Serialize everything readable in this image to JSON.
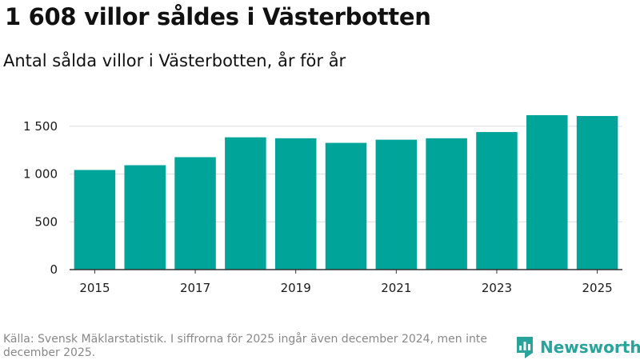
{
  "header": {
    "title": "1 608 villor såldes i Västerbotten",
    "subtitle": "Antal sålda villor i Västerbotten, år för år"
  },
  "chart_data": {
    "type": "bar",
    "title": "1 608 villor såldes i Västerbotten",
    "subtitle": "Antal sålda villor i Västerbotten, år för år",
    "categories": [
      "2015",
      "2016",
      "2017",
      "2018",
      "2019",
      "2020",
      "2021",
      "2022",
      "2023",
      "2024",
      "2025"
    ],
    "values": [
      1043,
      1093,
      1177,
      1385,
      1375,
      1327,
      1360,
      1375,
      1440,
      1617,
      1608
    ],
    "x_tick_labels": [
      "2015",
      "2017",
      "2019",
      "2021",
      "2023",
      "2025"
    ],
    "y_ticks": [
      0,
      500,
      1000,
      1500
    ],
    "y_tick_labels": [
      "0",
      "500",
      "1 000",
      "1 500"
    ],
    "ylim": [
      0,
      1650
    ],
    "xlabel": "",
    "ylabel": "",
    "grid": true,
    "bar_color": "#00a499"
  },
  "footer": {
    "source": "Källa: Svensk Mäklarstatistik. I siffrorna för 2025 ingår även december 2024, men inte december 2025.",
    "brand": "Newsworthy"
  },
  "colors": {
    "bar": "#00a499",
    "brand": "#2aa39a",
    "grid": "#dddddd",
    "axis": "#333333",
    "source_text": "#888888"
  },
  "icons": {
    "brand_logo": "newsworthy-logo-icon"
  }
}
